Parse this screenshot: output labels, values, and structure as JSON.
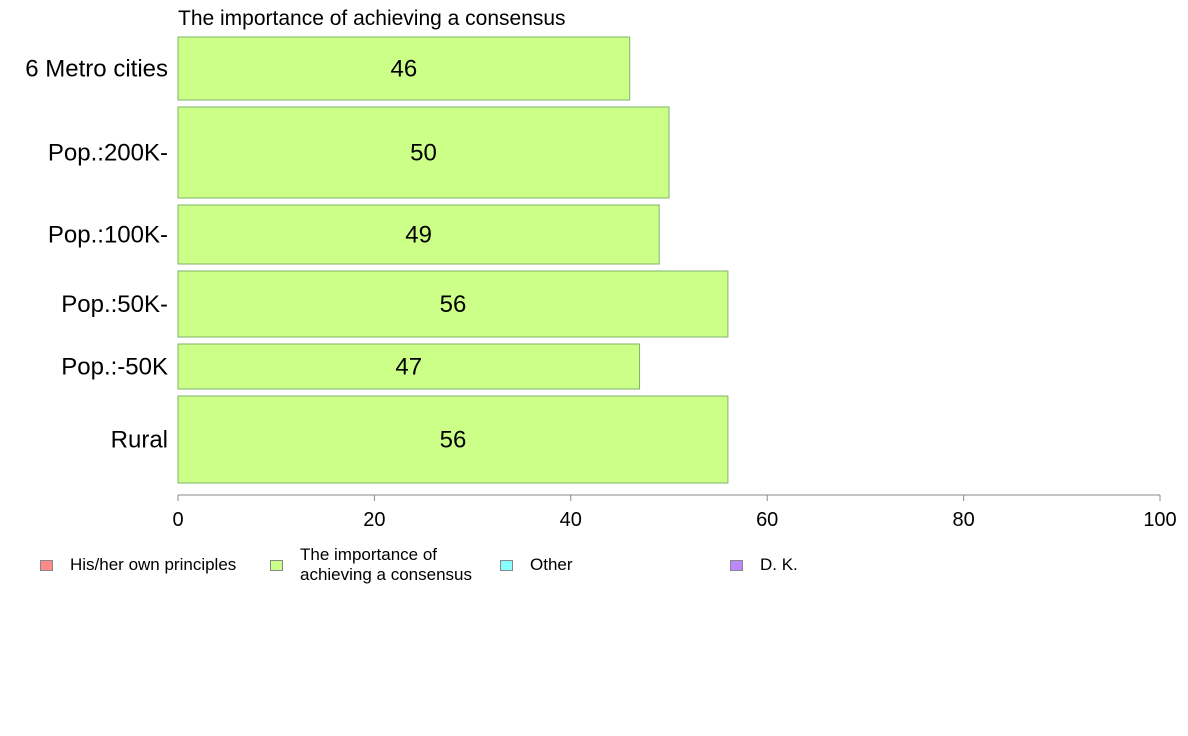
{
  "chart_data": {
    "type": "bar",
    "orientation": "horizontal",
    "title": "The importance of achieving a consensus",
    "categories": [
      "6 Metro cities",
      "Pop.:200K-",
      "Pop.:100K-",
      "Pop.:50K-",
      "Pop.:-50K",
      "Rural"
    ],
    "series": [
      {
        "name": "The importance of achieving a consensus",
        "values": [
          46,
          50,
          49,
          56,
          47,
          56
        ],
        "color": "#ccff88"
      }
    ],
    "xlim": [
      0,
      100
    ],
    "xticks": [
      0,
      20,
      40,
      60,
      80,
      100
    ],
    "grid": false,
    "legend": {
      "placement": "bottom",
      "entries": [
        {
          "label": "His/her own principles",
          "color": "#ff8a8a"
        },
        {
          "label": "The importance of achieving a consensus",
          "color": "#ccff88"
        },
        {
          "label": "Other",
          "color": "#88ffff"
        },
        {
          "label": "D. K.",
          "color": "#bb88ff"
        }
      ]
    }
  }
}
